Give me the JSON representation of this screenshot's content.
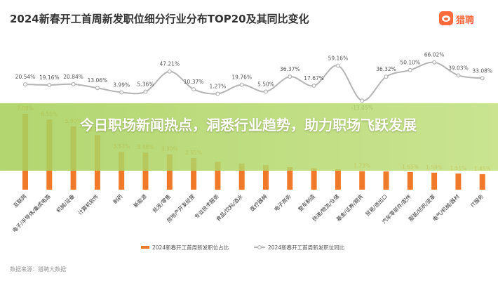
{
  "title": "2024新春开工首周新发职位细分行业分布TOP20及其同比变化",
  "logo": {
    "name": "猎聘",
    "icon": "liepin-logo-icon",
    "color": "#ff6a3d"
  },
  "banner": {
    "text": "今日职场新闻热点，洞悉行业趋势，助力职场飞跃发展"
  },
  "source": "数据来源：猎聘大数据",
  "chart_data": {
    "type": "bar",
    "categories": [
      "互联网",
      "电子/半导体/集成电路",
      "机械/设备",
      "计算机软件",
      "制药",
      "新能源",
      "批发/零售",
      "房地产开发经营",
      "专业技术服务",
      "食品/饮料/酒水",
      "医疗器械",
      "电子商务",
      "整车制造",
      "快递/物流/仓储",
      "基金/证券/期货",
      "贸易/进出口",
      "汽车零部件/配件",
      "服装/纺织/皮革",
      "电气/机械/器材",
      "IT服务"
    ],
    "series": [
      {
        "name": "2024新春开工首周新发职位占比",
        "type": "bar",
        "color": "#f07a2a",
        "values": [
          7.08,
          6.55,
          5.9,
          5.1,
          3.53,
          3.48,
          3.3,
          2.95,
          2.6,
          2.45,
          2.3,
          2.1,
          2.0,
          1.9,
          1.73,
          1.7,
          1.65,
          1.59,
          1.51,
          1.45
        ],
        "labels": [
          "7.08%",
          "6.55%",
          "5.90%",
          "5.10%",
          "3.53%",
          "3.48%",
          "3.30%",
          "2.95%",
          "",
          "",
          "",
          "",
          "",
          "",
          "1.73%",
          "",
          "1.65%",
          "1.59%",
          "1.51%",
          "1.45%"
        ]
      },
      {
        "name": "2024新春开工首周新发职位同比",
        "type": "line",
        "color": "#b4b4b4",
        "values": [
          20.54,
          19.16,
          20.84,
          13.06,
          3.99,
          5.36,
          47.21,
          10.37,
          1.27,
          19.76,
          5.5,
          36.37,
          17.67,
          59.16,
          -13.05,
          36.32,
          50.1,
          66.02,
          39.03,
          33.08
        ],
        "labels": [
          "20.54%",
          "19.16%",
          "20.84%",
          "13.06%",
          "3.99%",
          "5.36%",
          "47.21%",
          "10.37%",
          "1.27%",
          "19.76%",
          "5.50%",
          "36.37%",
          "17.67%",
          "59.16%",
          "-13.05%",
          "36.32%",
          "50.10%",
          "66.02%",
          "39.03%",
          "33.08%"
        ]
      }
    ],
    "bar_ylim": [
      0,
      8
    ],
    "line_ylim": [
      -20,
      70
    ],
    "legend": "bottom-center",
    "grid": false
  }
}
